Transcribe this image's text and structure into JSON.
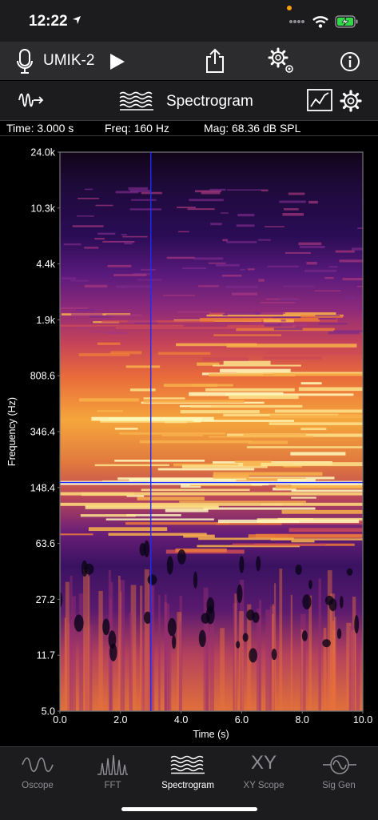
{
  "status": {
    "time": "12:22"
  },
  "toolbar": {
    "device": "UMIK-2",
    "icons": [
      "microphone-icon",
      "play-icon",
      "share-icon",
      "settings-gears-icon",
      "info-icon"
    ]
  },
  "view": {
    "title": "Spectrogram",
    "icons": [
      "waveform-input-icon",
      "spectrogram-icon",
      "graph-display-icon",
      "gear-icon"
    ]
  },
  "readout": {
    "time": "Time: 3.000 s",
    "freq": "Freq: 160 Hz",
    "mag": "Mag: 68.36 dB SPL"
  },
  "chart_data": {
    "type": "heatmap",
    "xlabel": "Time (s)",
    "ylabel": "Frequency (Hz)",
    "x_ticks": [
      "0.0",
      "2.0",
      "4.0",
      "6.0",
      "8.0",
      "10.0"
    ],
    "y_ticks": [
      "24.0k",
      "10.3k",
      "4.4k",
      "1.9k",
      "808.6",
      "346.4",
      "148.4",
      "63.6",
      "27.2",
      "11.7",
      "5.0"
    ],
    "xlim": [
      0,
      10
    ],
    "ylim_hz": [
      5,
      24000
    ],
    "y_scale": "log",
    "cursor": {
      "time_s": 3.0,
      "freq_hz": 160
    }
  },
  "tabs": [
    {
      "label": "Oscope",
      "icon": "oscope-icon",
      "active": false
    },
    {
      "label": "FFT",
      "icon": "fft-icon",
      "active": false
    },
    {
      "label": "Spectrogram",
      "icon": "spectrogram-icon",
      "active": true
    },
    {
      "label": "XY Scope",
      "icon": "xy-scope-icon",
      "glyph": "XY",
      "active": false
    },
    {
      "label": "Sig Gen",
      "icon": "sig-gen-icon",
      "active": false
    }
  ]
}
